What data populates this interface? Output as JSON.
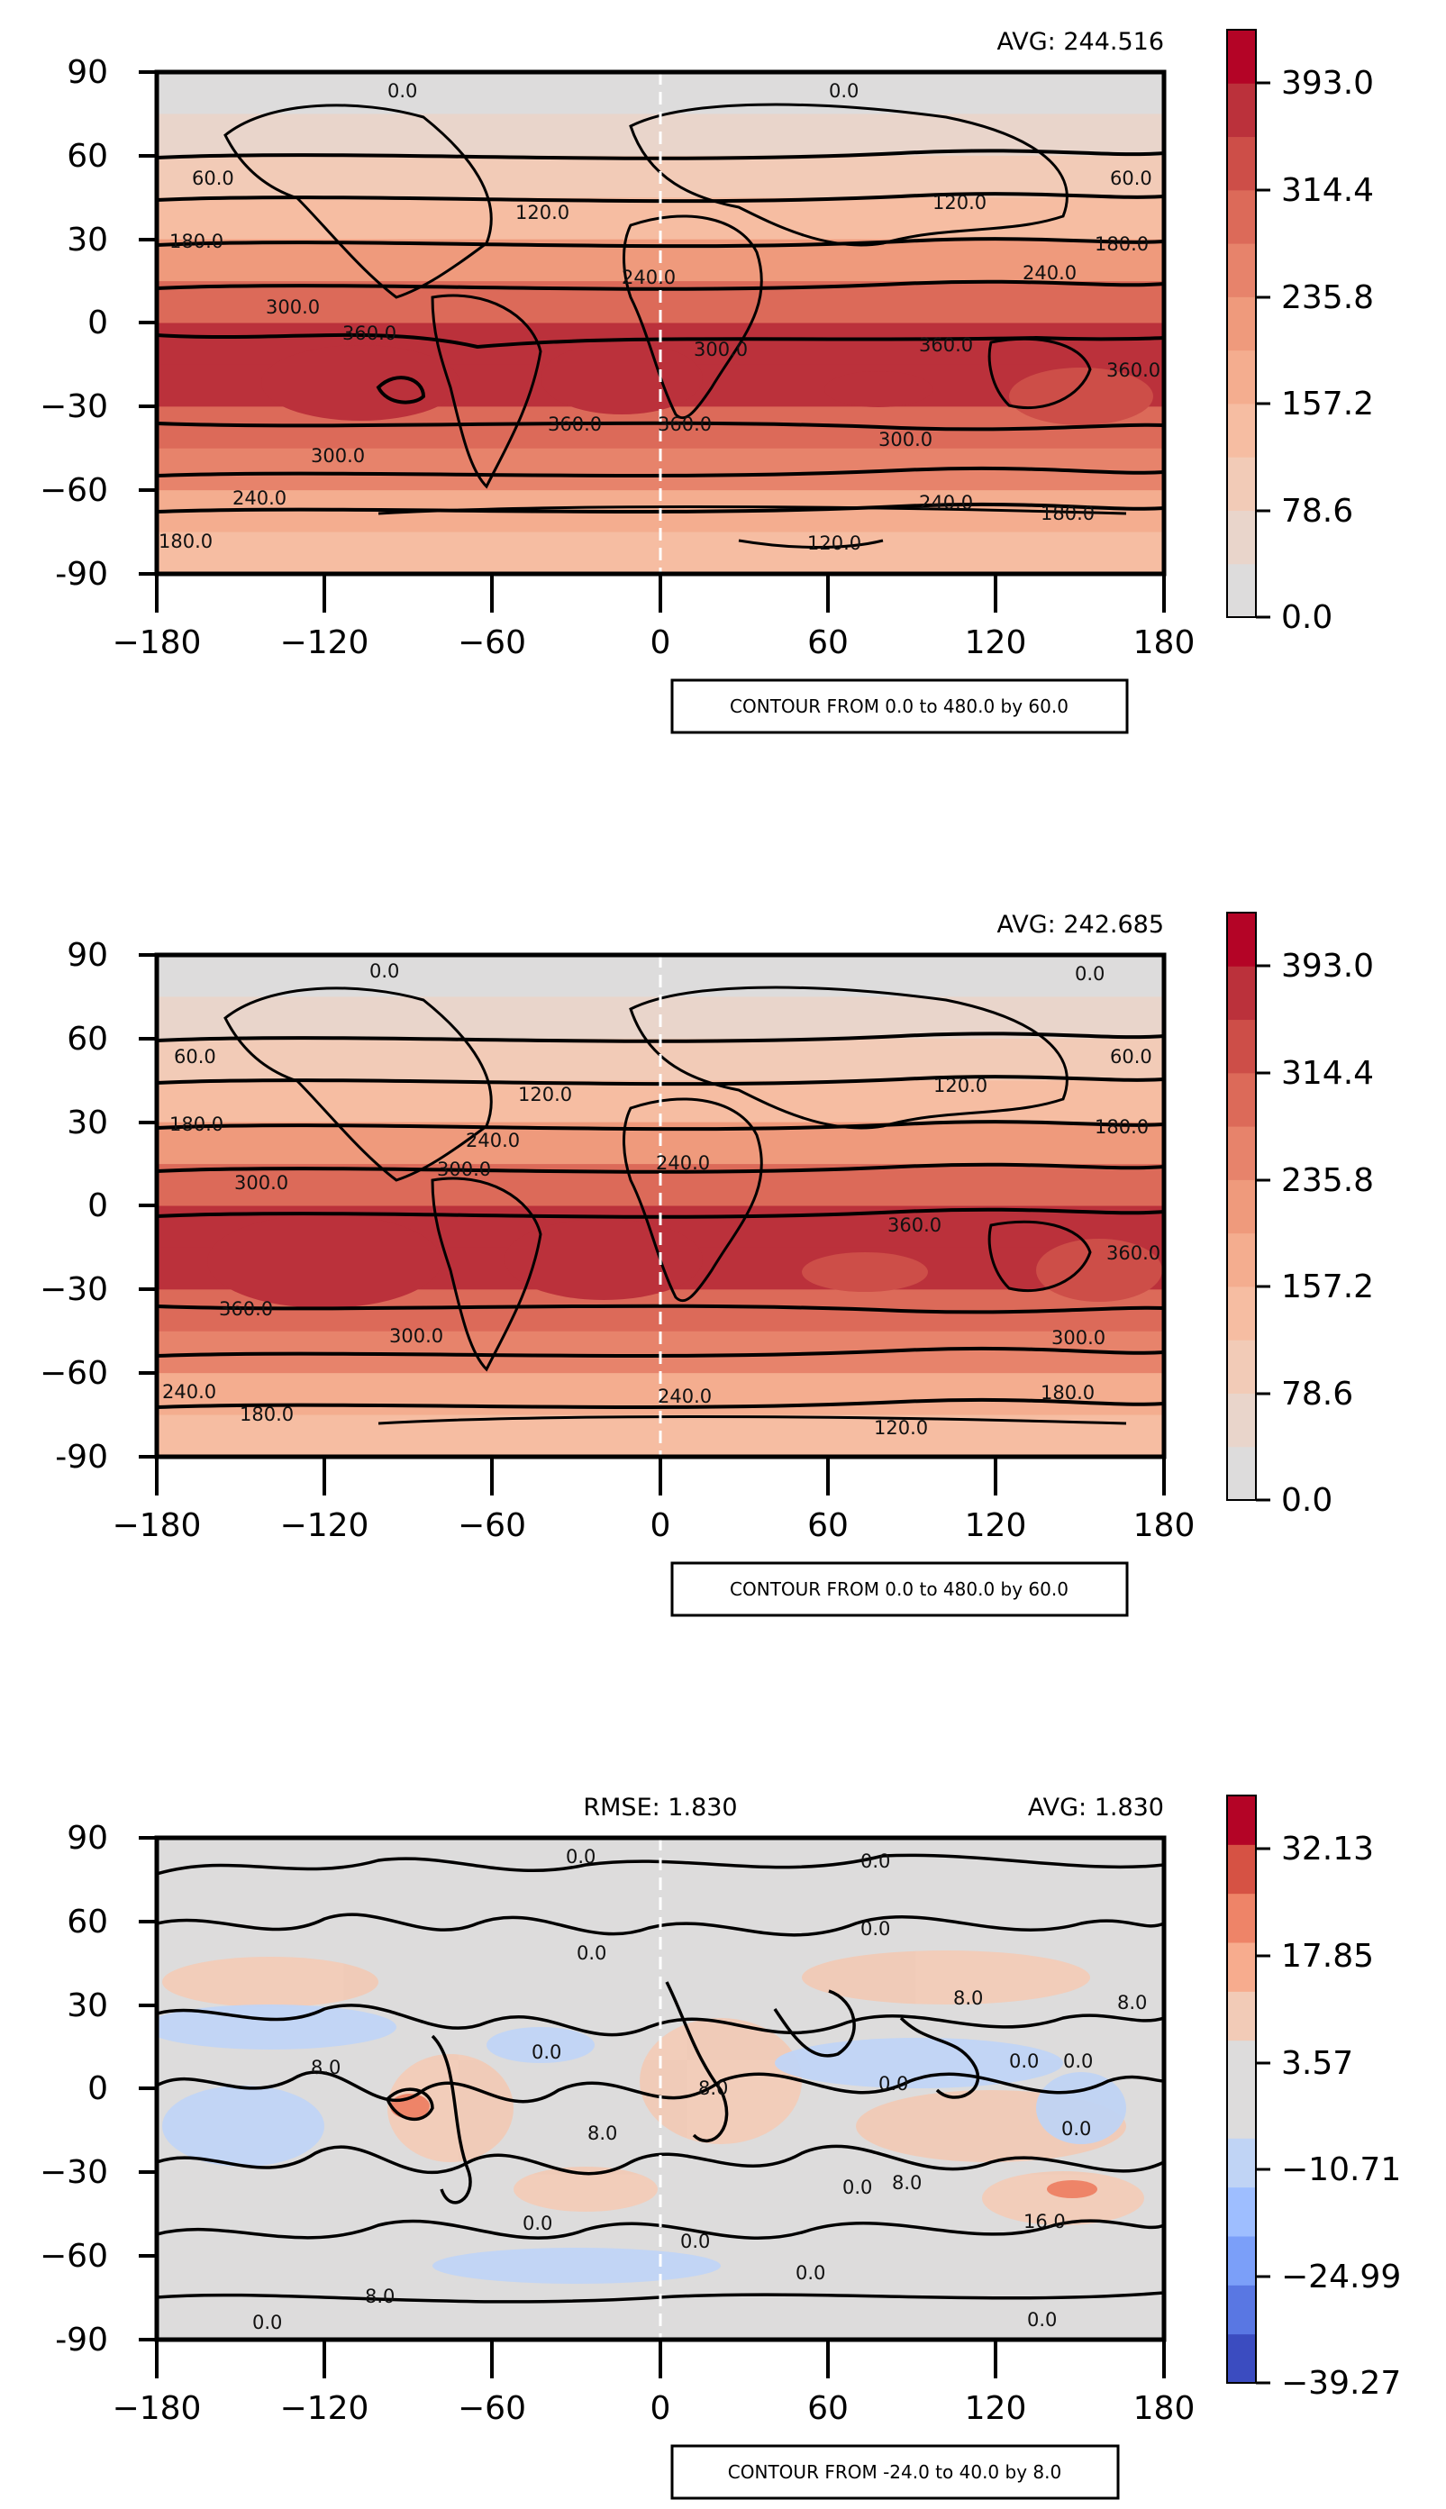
{
  "chart_data": [
    {
      "type": "heatmap",
      "title": "",
      "stats": {
        "avg": "AVG: 244.516"
      },
      "xlabel": "",
      "ylabel": "",
      "xlim": [
        -180,
        180
      ],
      "ylim": [
        -90,
        90
      ],
      "x_ticks": [
        "−180",
        "−120",
        "−60",
        "0",
        "60",
        "120",
        "180"
      ],
      "y_ticks": [
        "90",
        "60",
        "30",
        "0",
        "−30",
        "−60",
        "-90"
      ],
      "zonal_profile": {
        "lat": [
          90,
          75,
          60,
          45,
          30,
          15,
          0,
          -15,
          -30,
          -45,
          -60,
          -75,
          -90
        ],
        "value": [
          0,
          20,
          60,
          120,
          180,
          260,
          320,
          390,
          340,
          280,
          200,
          150,
          120
        ]
      },
      "colorbar": {
        "ticks": [
          "393.0",
          "314.4",
          "235.8",
          "157.2",
          "78.6",
          "0.0"
        ],
        "range": [
          0,
          432
        ],
        "colors": [
          "#dddcdc",
          "#e9d5cb",
          "#f2cbb7",
          "#f6bda2",
          "#f4ad8f",
          "#ef9a7c",
          "#e7836b",
          "#dc6a59",
          "#cd4e48",
          "#bb313b",
          "#b40426"
        ]
      },
      "contour_labels": [
        "0.0",
        "0.0",
        "60.0",
        "60.0",
        "120.0",
        "120.0",
        "180.0",
        "180.0",
        "240.0",
        "240.0",
        "300.0",
        "300.0",
        "300.0",
        "360.0",
        "360.0",
        "360.0",
        "360.0",
        "360.0",
        "300.0",
        "240.0",
        "240.0",
        "180.0",
        "120.0",
        "180.0"
      ],
      "contour_info": "CONTOUR FROM 0.0 to 480.0 by 60.0"
    },
    {
      "type": "heatmap",
      "title": "",
      "stats": {
        "avg": "AVG: 242.685"
      },
      "xlabel": "",
      "ylabel": "",
      "xlim": [
        -180,
        180
      ],
      "ylim": [
        -90,
        90
      ],
      "x_ticks": [
        "−180",
        "−120",
        "−60",
        "0",
        "60",
        "120",
        "180"
      ],
      "y_ticks": [
        "90",
        "60",
        "30",
        "0",
        "−30",
        "−60",
        "-90"
      ],
      "zonal_profile": {
        "lat": [
          90,
          75,
          60,
          45,
          30,
          15,
          0,
          -15,
          -30,
          -45,
          -60,
          -75,
          -90
        ],
        "value": [
          0,
          20,
          60,
          120,
          180,
          260,
          320,
          390,
          340,
          280,
          200,
          150,
          120
        ]
      },
      "colorbar": {
        "ticks": [
          "393.0",
          "314.4",
          "235.8",
          "157.2",
          "78.6",
          "0.0"
        ],
        "range": [
          0,
          432
        ],
        "colors": [
          "#dddcdc",
          "#e9d5cb",
          "#f2cbb7",
          "#f6bda2",
          "#f4ad8f",
          "#ef9a7c",
          "#e7836b",
          "#dc6a59",
          "#cd4e48",
          "#bb313b",
          "#b40426"
        ]
      },
      "contour_labels": [
        "0.0",
        "0.0",
        "60.0",
        "60.0",
        "120.0",
        "120.0",
        "180.0",
        "180.0",
        "240.0",
        "240.0",
        "300.0",
        "300.0",
        "300.0",
        "360.0",
        "360.0",
        "360.0",
        "300.0",
        "240.0",
        "240.0",
        "180.0",
        "180.0",
        "120.0"
      ],
      "contour_info": "CONTOUR FROM 0.0 to 480.0 by 60.0"
    },
    {
      "type": "heatmap",
      "title": "",
      "stats": {
        "rmse": "RMSE: 1.830",
        "avg": "AVG: 1.830"
      },
      "xlabel": "",
      "ylabel": "",
      "xlim": [
        -180,
        180
      ],
      "ylim": [
        -90,
        90
      ],
      "x_ticks": [
        "−180",
        "−120",
        "−60",
        "0",
        "60",
        "120",
        "180"
      ],
      "y_ticks": [
        "90",
        "60",
        "30",
        "0",
        "−30",
        "−60",
        "-90"
      ],
      "colorbar": {
        "ticks": [
          "32.13",
          "17.85",
          "3.57",
          "−10.71",
          "−24.99",
          "−39.27"
        ],
        "range": [
          -39.27,
          39.27
        ],
        "colors": [
          "#3b4cc0",
          "#5977e3",
          "#7b9ff9",
          "#9ebeff",
          "#c0d4f5",
          "#dddcdc",
          "#dddcdc",
          "#f2cbb7",
          "#f7ac8e",
          "#ee8468",
          "#d65244",
          "#b40426"
        ]
      },
      "contour_labels": [
        "0.0",
        "0.0",
        "0.0",
        "0.0",
        "8.0",
        "8.0",
        "0.0",
        "0.0",
        "8.0",
        "8.0",
        "0.0",
        "0.0",
        "8.0",
        "0.0",
        "8.0",
        "0.0",
        "16.0",
        "0.0",
        "0.0",
        "0.0",
        "8.0",
        "0.0",
        "0.0"
      ],
      "contour_info": "CONTOUR FROM -24.0 to 40.0 by 8.0"
    }
  ]
}
